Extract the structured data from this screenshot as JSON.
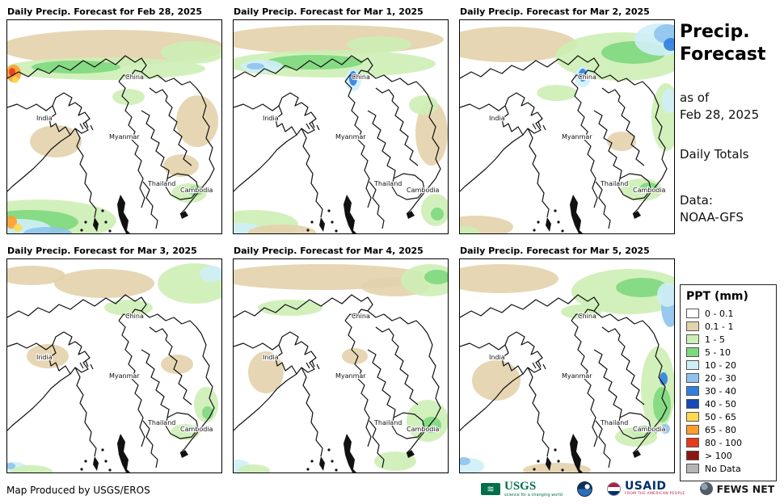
{
  "panels": [
    {
      "title": "Daily Precip. Forecast for Feb 28, 2025"
    },
    {
      "title": "Daily Precip. Forecast for Mar 1, 2025"
    },
    {
      "title": "Daily Precip. Forecast for Mar 2, 2025"
    },
    {
      "title": "Daily Precip. Forecast for Mar 3, 2025"
    },
    {
      "title": "Daily Precip. Forecast for Mar 4, 2025"
    },
    {
      "title": "Daily Precip. Forecast for Mar 5, 2025"
    }
  ],
  "map_labels": [
    "India",
    "China",
    "Myanmar",
    "Thailand",
    "Cambodia"
  ],
  "sidebar": {
    "title_line1": "Precip.",
    "title_line2": "Forecast",
    "asof_line1": "as of",
    "asof_line2": "Feb 28, 2025",
    "daily_totals": "Daily Totals",
    "data_line1": "Data:",
    "data_line2": "NOAA-GFS"
  },
  "legend": {
    "title": "PPT (mm)",
    "entries": [
      {
        "label": "0 - 0.1",
        "color": "#ffffff"
      },
      {
        "label": "0.1 - 1",
        "color": "#e3d2ab"
      },
      {
        "label": "1 - 5",
        "color": "#cdeeb5"
      },
      {
        "label": "5 - 10",
        "color": "#7ed87e"
      },
      {
        "label": "10 - 20",
        "color": "#cfeef7"
      },
      {
        "label": "20 - 30",
        "color": "#8fc3ee"
      },
      {
        "label": "30 - 40",
        "color": "#2f7fe0"
      },
      {
        "label": "40 - 50",
        "color": "#1648b8"
      },
      {
        "label": "50 - 65",
        "color": "#ffd94f"
      },
      {
        "label": "65 - 80",
        "color": "#ff9d2e"
      },
      {
        "label": "80 - 100",
        "color": "#e8391c"
      },
      {
        "label": "> 100",
        "color": "#8c1710"
      },
      {
        "label": "No Data",
        "color": "#b5b5b5"
      }
    ]
  },
  "footer": {
    "credit": "Map Produced by USGS/EROS"
  },
  "logos": {
    "usgs_label": "USGS",
    "usgs_tagline": "science for a changing world",
    "usaid_label": "USAID",
    "usaid_tagline": "FROM THE AMERICAN PEOPLE",
    "fewsnet_label": "FEWS NET"
  }
}
